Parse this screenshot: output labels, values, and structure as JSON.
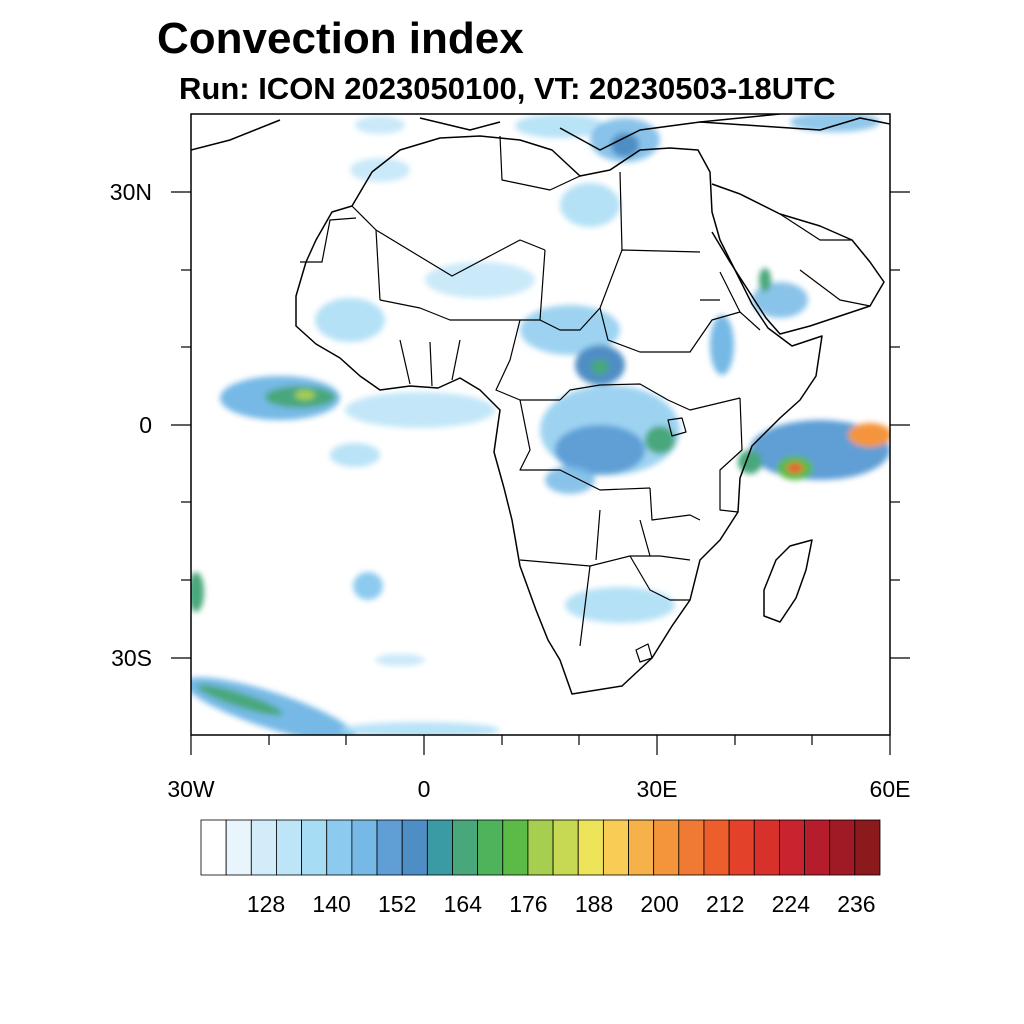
{
  "title": "Convection index",
  "subtitle": "Run: ICON 2023050100,  VT: 20230503-18UTC",
  "lon_ticks": [
    "30W",
    "0",
    "30E",
    "60E"
  ],
  "lat_ticks": [
    "30N",
    "0",
    "30S"
  ],
  "colorbar": {
    "labels": [
      "128",
      "140",
      "152",
      "164",
      "176",
      "188",
      "200",
      "212",
      "224",
      "236"
    ],
    "colors": [
      "#ffffff",
      "#e9f5fc",
      "#d2ecf9",
      "#bde4f7",
      "#a7dcf5",
      "#8ccbef",
      "#76b9e6",
      "#5f9fd6",
      "#4f8ec4",
      "#3b9ba4",
      "#48a77b",
      "#4fb35b",
      "#5cba47",
      "#a6cf4f",
      "#c7d952",
      "#eee45a",
      "#f9cd55",
      "#f7b14a",
      "#f4953c",
      "#f07a33",
      "#ec5f2d",
      "#e34129",
      "#d8312c",
      "#c9232f",
      "#b61d2c",
      "#a01a25",
      "#8c1a1d"
    ]
  },
  "map_colors": {
    "light": "#a7dcf5",
    "mid": "#5f9fd6",
    "green": "#4fb35b",
    "yellow": "#eee45a",
    "red": "#ec5f2d"
  }
}
